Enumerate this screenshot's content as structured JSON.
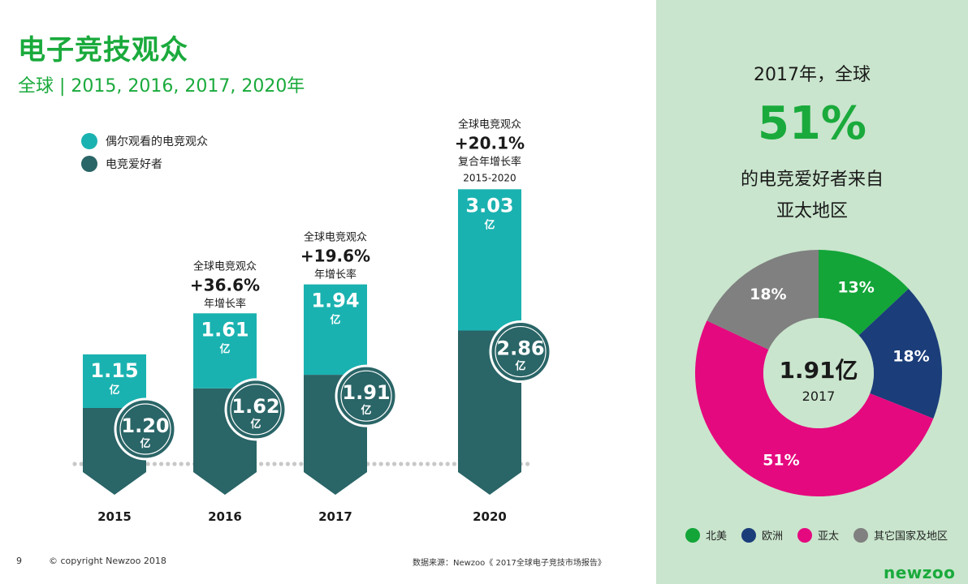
{
  "header": {
    "title": "电子竞技观众",
    "subtitle": "全球 | 2015, 2016, 2017, 2020年"
  },
  "colors": {
    "occasional": "#1ab2b0",
    "enthusiast": "#2a6567",
    "green": "#1aaa3c",
    "panel": "#c9e5cd",
    "na": "#13a538",
    "eu": "#1b3d7a",
    "apac": "#e5097f",
    "row": "#808080"
  },
  "chart_data": [
    {
      "type": "bar",
      "stacked": true,
      "categories": [
        "2015",
        "2016",
        "2017",
        "2020"
      ],
      "legend": [
        {
          "name": "偶尔观看的电竞观众",
          "color": "#1ab2b0"
        },
        {
          "name": "电竞爱好者",
          "color": "#2a6567"
        }
      ],
      "series": [
        {
          "name": "偶尔观看的电竞观众",
          "values": [
            1.15,
            1.61,
            1.94,
            3.03
          ]
        },
        {
          "name": "电竞爱好者",
          "values": [
            1.2,
            1.62,
            1.91,
            2.86
          ]
        }
      ],
      "value_labels": [
        {
          "occasional": "1.15",
          "enthusiast": "1.20"
        },
        {
          "occasional": "1.61",
          "enthusiast": "1.62"
        },
        {
          "occasional": "1.94",
          "enthusiast": "1.91"
        },
        {
          "occasional": "3.03",
          "enthusiast": "2.86"
        }
      ],
      "unit": "亿",
      "annotations": [
        null,
        {
          "line1": "全球电竞观众",
          "value": "+36.6%",
          "line2": "年增长率"
        },
        {
          "line1": "全球电竞观众",
          "value": "+19.6%",
          "line2": "年增长率"
        },
        {
          "line1": "全球电竞观众",
          "value": "+20.1%",
          "line2": "复合年增长率",
          "line3": "2015-2020"
        }
      ]
    },
    {
      "type": "pie",
      "title_line1": "2017年，全球",
      "highlight": "51%",
      "title_line2": "的电竞爱好者来自",
      "title_line3": "亚太地区",
      "center_value": "1.91亿",
      "center_label": "2017",
      "slices": [
        {
          "label": "北美",
          "value": 13,
          "text": "13%",
          "color": "#13a538"
        },
        {
          "label": "欧洲",
          "value": 18,
          "text": "18%",
          "color": "#1b3d7a"
        },
        {
          "label": "亚太",
          "value": 51,
          "text": "51%",
          "color": "#e5097f"
        },
        {
          "label": "其它国家及地区",
          "value": 18,
          "text": "18%",
          "color": "#808080"
        }
      ]
    }
  ],
  "footer": {
    "page": "9",
    "copyright": "© copyright Newzoo 2018",
    "source": "数据来源：Newzoo《 2017全球电子竞技市场报告》",
    "logo": "newzoo"
  }
}
